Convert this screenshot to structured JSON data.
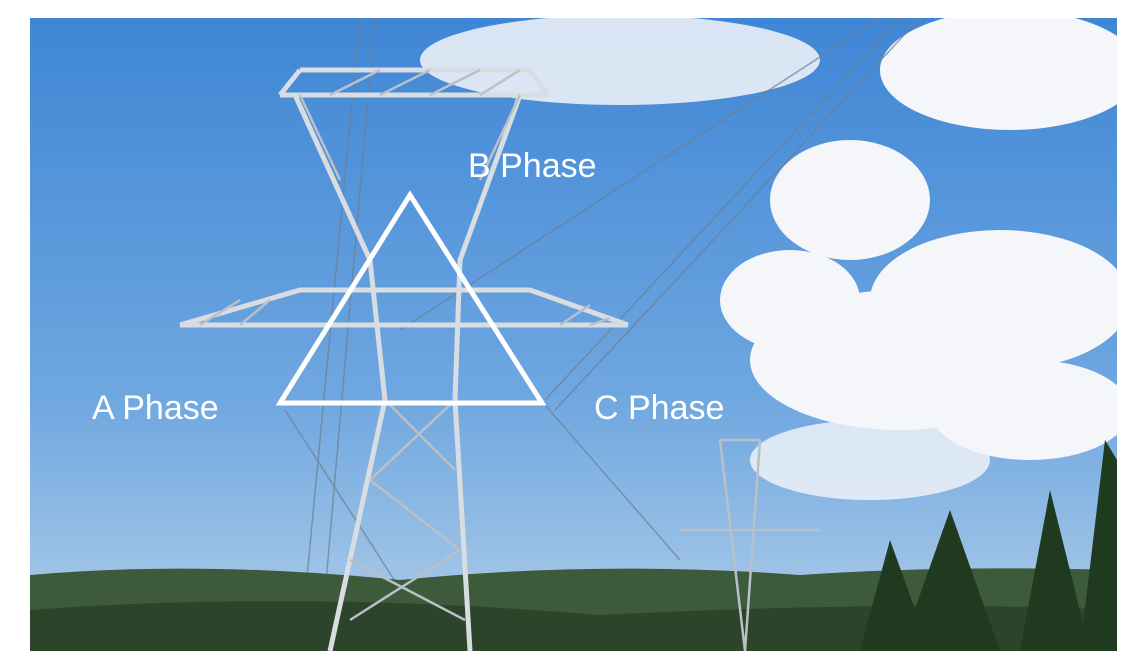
{
  "labels": [
    "B Phase",
    "A Phase",
    "C Phase"
  ]
}
